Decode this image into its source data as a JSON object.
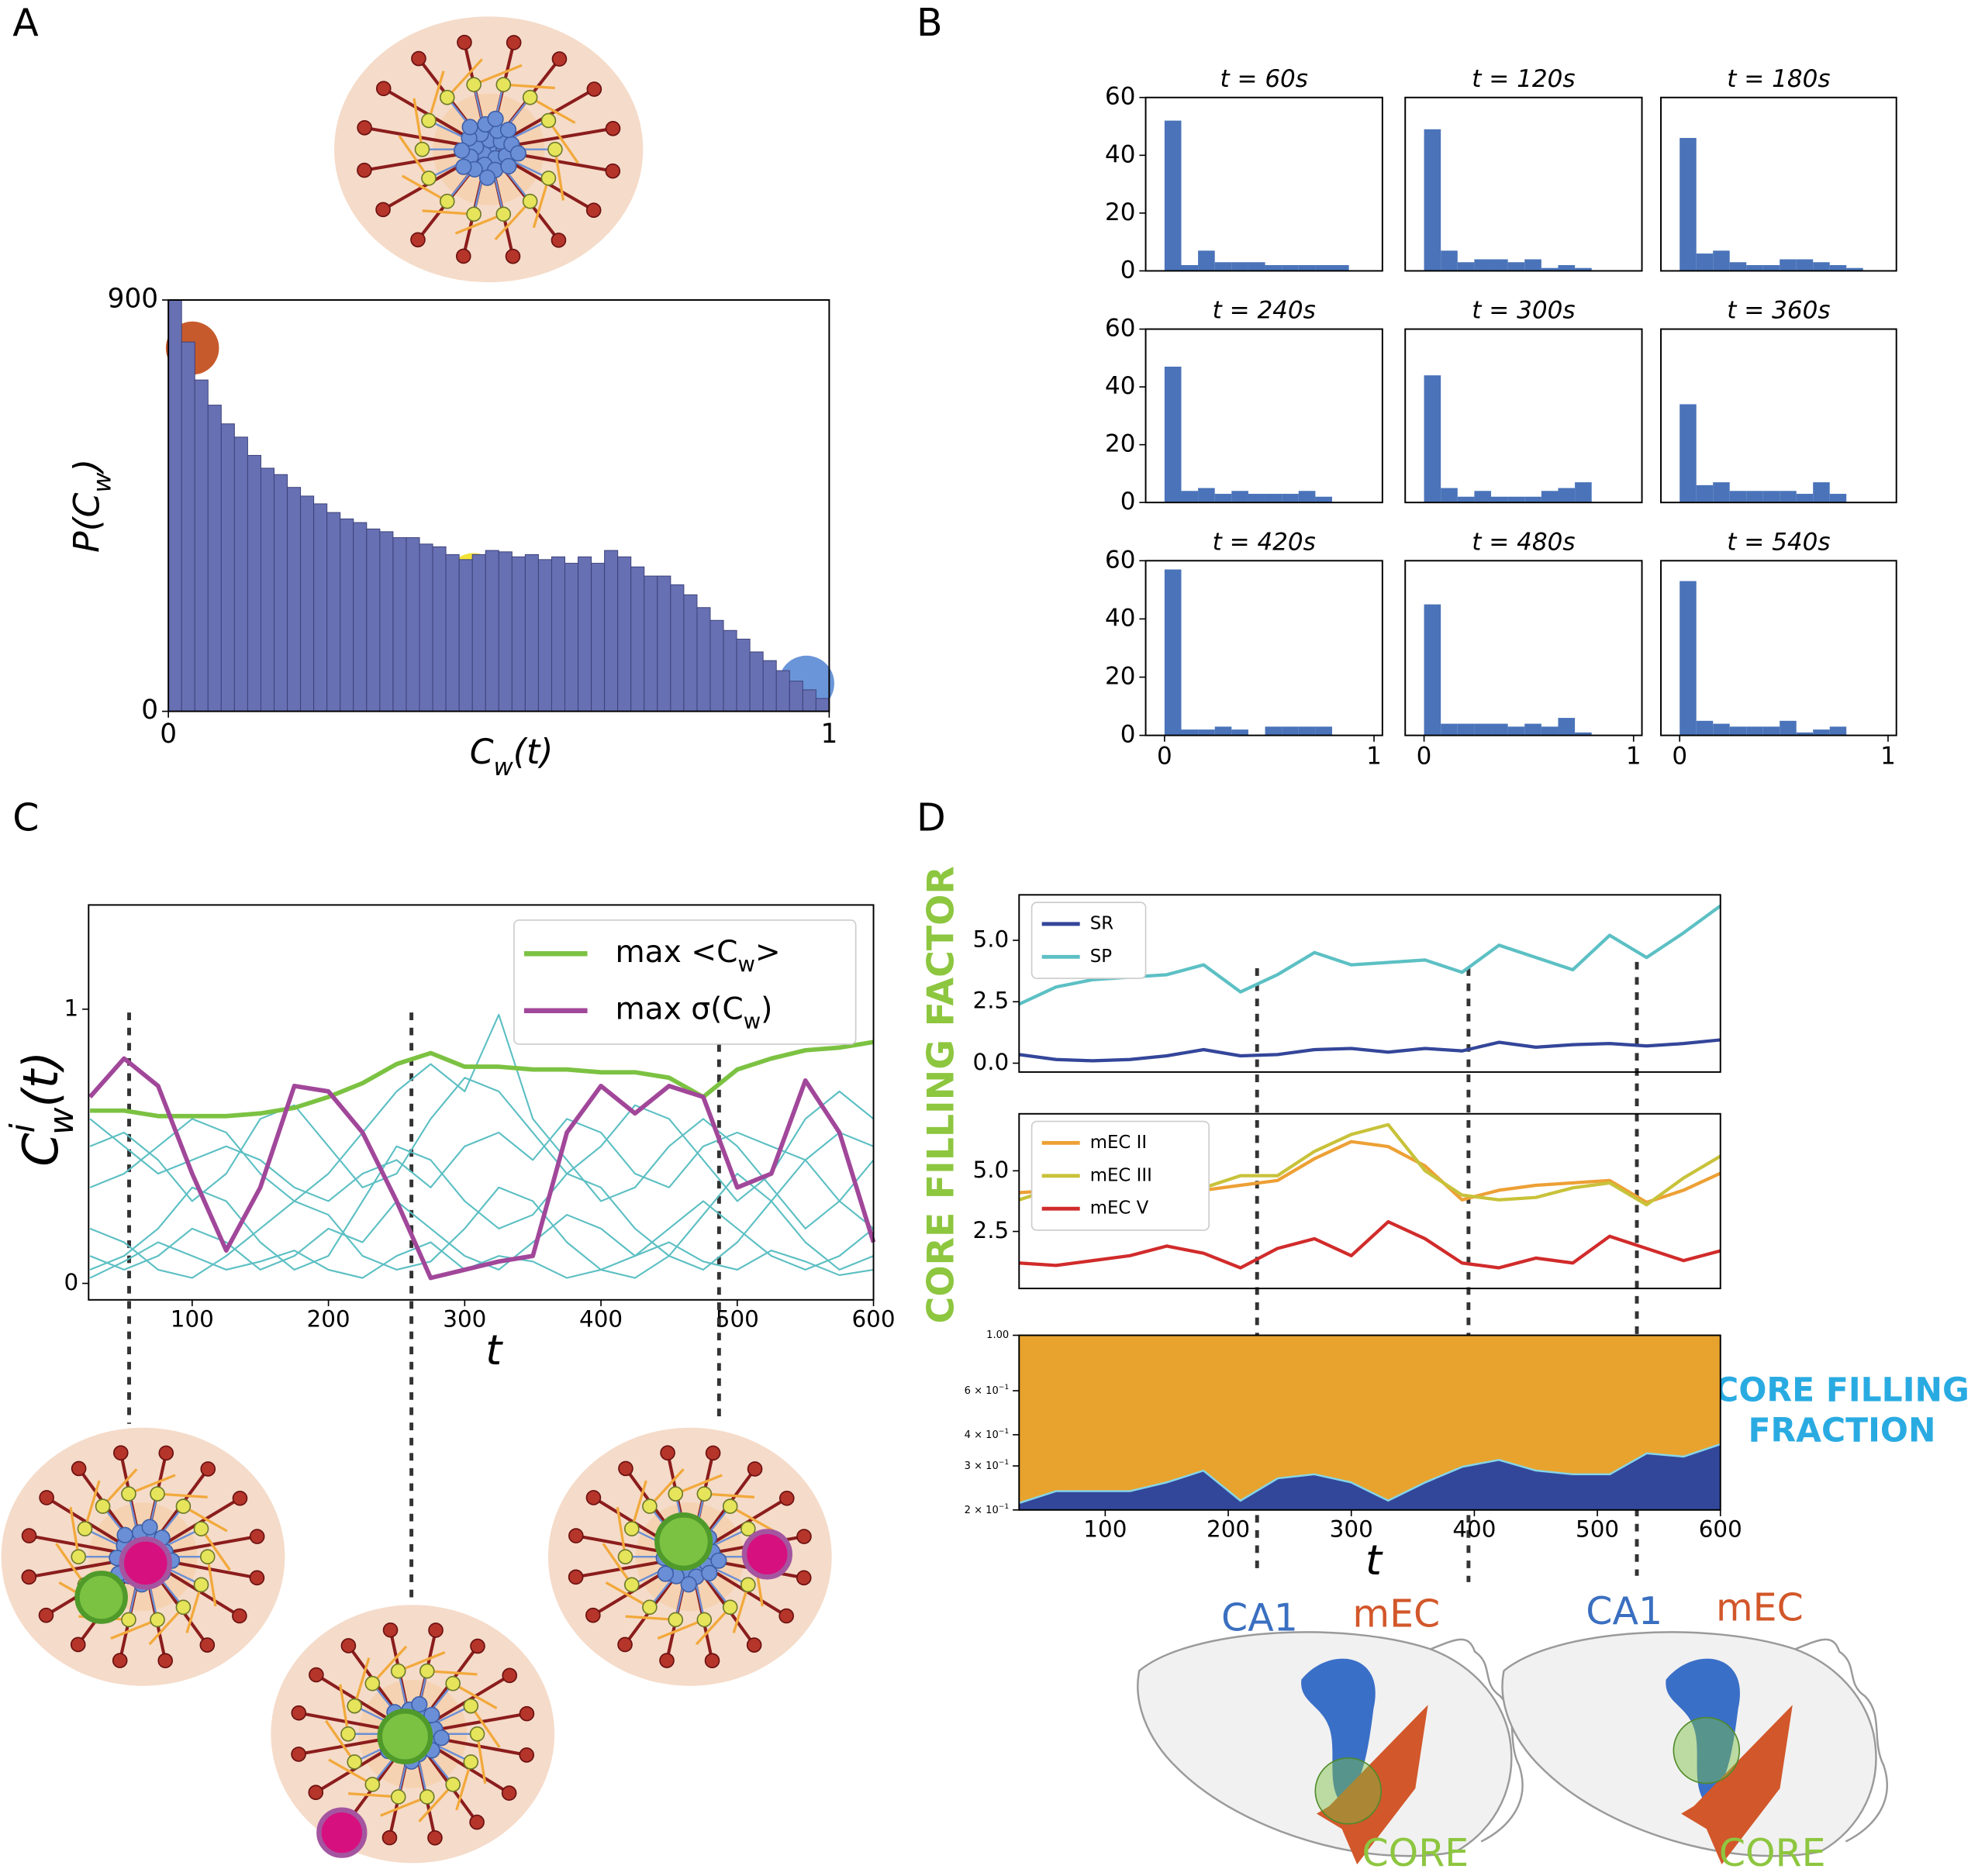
{
  "panel_labels": [
    "A",
    "B",
    "C",
    "D"
  ],
  "annotations": {
    "core_filling_factor": "CORE FILLING FACTOR",
    "core_filling_fraction": [
      "CORE FILLING",
      "FRACTION"
    ]
  },
  "brain_diagrams": [
    {
      "labels": [
        "CA1",
        "mEC",
        "CORE"
      ]
    },
    {
      "labels": [
        "CA1",
        "mEC",
        "CORE"
      ]
    }
  ],
  "chart_data": [
    {
      "type": "histogram",
      "xlabel": "Cw(t)",
      "ylabel": "P(Cw)",
      "color": "#6870b4",
      "bins": [
        0,
        0.02,
        0.04,
        0.06,
        0.08,
        0.1,
        0.12,
        0.14,
        0.16,
        0.18,
        0.2,
        0.22,
        0.24,
        0.26,
        0.28,
        0.3,
        0.32,
        0.34,
        0.36,
        0.38,
        0.4,
        0.42,
        0.44,
        0.46,
        0.48,
        0.5,
        0.52,
        0.54,
        0.56,
        0.58,
        0.6,
        0.62,
        0.64,
        0.66,
        0.68,
        0.7,
        0.72,
        0.74,
        0.76,
        0.78,
        0.8,
        0.82,
        0.84,
        0.86,
        0.88,
        0.9,
        0.92,
        0.94,
        0.96,
        0.98,
        1.0
      ],
      "counts": [
        900,
        808,
        725,
        670,
        629,
        600,
        560,
        532,
        518,
        490,
        471,
        454,
        435,
        421,
        413,
        399,
        393,
        380,
        380,
        366,
        360,
        343,
        332,
        343,
        352,
        349,
        338,
        343,
        332,
        338,
        324,
        338,
        324,
        352,
        338,
        316,
        296,
        296,
        277,
        255,
        227,
        199,
        177,
        158,
        130,
        111,
        89,
        66,
        47,
        28
      ],
      "xlim": [
        0,
        1
      ],
      "ylim": [
        0,
        900
      ],
      "xticks": [
        0,
        1
      ],
      "yticks": [
        0,
        900
      ]
    },
    {
      "type": "histogram",
      "title": "t = 60s",
      "color": "#4a73b9",
      "bins": [
        0,
        0.08,
        0.16,
        0.24,
        0.32,
        0.4,
        0.48,
        0.56,
        0.64,
        0.72,
        0.8,
        0.88,
        0.96
      ],
      "counts": [
        52,
        2,
        7,
        3,
        3,
        3,
        2,
        2,
        2,
        2,
        2,
        0
      ],
      "xlim": [
        -0.09,
        1.04
      ],
      "ylim": [
        0,
        60
      ],
      "yticks": [
        0,
        20,
        40,
        60
      ]
    },
    {
      "type": "histogram",
      "title": "t = 120s",
      "color": "#4a73b9",
      "bins": [
        0,
        0.08,
        0.16,
        0.24,
        0.32,
        0.4,
        0.48,
        0.56,
        0.64,
        0.72,
        0.8,
        0.88,
        0.96
      ],
      "counts": [
        49,
        7,
        3,
        4,
        4,
        3,
        4,
        1,
        2,
        1,
        0,
        0
      ],
      "xlim": [
        -0.09,
        1.04
      ],
      "ylim": [
        0,
        60
      ]
    },
    {
      "type": "histogram",
      "title": "t = 180s",
      "color": "#4a73b9",
      "bins": [
        0,
        0.08,
        0.16,
        0.24,
        0.32,
        0.4,
        0.48,
        0.56,
        0.64,
        0.72,
        0.8,
        0.88,
        0.96
      ],
      "counts": [
        46,
        6,
        7,
        3,
        2,
        2,
        4,
        4,
        3,
        2,
        1,
        0
      ],
      "xlim": [
        -0.09,
        1.04
      ],
      "ylim": [
        0,
        60
      ]
    },
    {
      "type": "histogram",
      "title": "t = 240s",
      "color": "#4a73b9",
      "bins": [
        0,
        0.08,
        0.16,
        0.24,
        0.32,
        0.4,
        0.48,
        0.56,
        0.64,
        0.72,
        0.8,
        0.88,
        0.96
      ],
      "counts": [
        47,
        4,
        5,
        3,
        4,
        3,
        3,
        3,
        4,
        2,
        0,
        0
      ],
      "xlim": [
        -0.09,
        1.04
      ],
      "ylim": [
        0,
        60
      ],
      "yticks": [
        0,
        20,
        40,
        60
      ]
    },
    {
      "type": "histogram",
      "title": "t = 300s",
      "color": "#4a73b9",
      "bins": [
        0,
        0.08,
        0.16,
        0.24,
        0.32,
        0.4,
        0.48,
        0.56,
        0.64,
        0.72,
        0.8,
        0.88,
        0.96
      ],
      "counts": [
        44,
        5,
        2,
        4,
        2,
        2,
        2,
        4,
        5,
        7,
        0,
        0
      ],
      "xlim": [
        -0.09,
        1.04
      ],
      "ylim": [
        0,
        60
      ]
    },
    {
      "type": "histogram",
      "title": "t = 360s",
      "color": "#4a73b9",
      "bins": [
        0,
        0.08,
        0.16,
        0.24,
        0.32,
        0.4,
        0.48,
        0.56,
        0.64,
        0.72,
        0.8,
        0.88,
        0.96
      ],
      "counts": [
        34,
        6,
        7,
        4,
        4,
        4,
        4,
        3,
        7,
        3,
        0,
        0
      ],
      "xlim": [
        -0.09,
        1.04
      ],
      "ylim": [
        0,
        60
      ]
    },
    {
      "type": "histogram",
      "title": "t = 420s",
      "color": "#4a73b9",
      "bins": [
        0,
        0.08,
        0.16,
        0.24,
        0.32,
        0.4,
        0.48,
        0.56,
        0.64,
        0.72,
        0.8,
        0.88,
        0.96
      ],
      "counts": [
        57,
        2,
        2,
        3,
        2,
        0,
        3,
        3,
        3,
        3,
        0,
        0
      ],
      "xlim": [
        -0.09,
        1.04
      ],
      "ylim": [
        0,
        60
      ],
      "xticks": [
        0,
        1
      ],
      "yticks": [
        0,
        20,
        40,
        60
      ]
    },
    {
      "type": "histogram",
      "title": "t = 480s",
      "color": "#4a73b9",
      "bins": [
        0,
        0.08,
        0.16,
        0.24,
        0.32,
        0.4,
        0.48,
        0.56,
        0.64,
        0.72,
        0.8,
        0.88,
        0.96
      ],
      "counts": [
        45,
        4,
        4,
        4,
        4,
        3,
        4,
        3,
        6,
        1,
        0,
        0
      ],
      "xlim": [
        -0.09,
        1.04
      ],
      "ylim": [
        0,
        60
      ],
      "xticks": [
        0,
        1
      ]
    },
    {
      "type": "histogram",
      "title": "t = 540s",
      "color": "#4a73b9",
      "bins": [
        0,
        0.08,
        0.16,
        0.24,
        0.32,
        0.4,
        0.48,
        0.56,
        0.64,
        0.72,
        0.8,
        0.88,
        0.96
      ],
      "counts": [
        53,
        5,
        4,
        3,
        3,
        3,
        5,
        1,
        2,
        3,
        0,
        0
      ],
      "xlim": [
        -0.09,
        1.04
      ],
      "ylim": [
        0,
        60
      ],
      "xticks": [
        0,
        1
      ]
    },
    {
      "type": "line",
      "xlabel": "t",
      "ylabel": "Ciw(t)",
      "legend": "upper right",
      "x": [
        25,
        50,
        75,
        100,
        125,
        150,
        175,
        200,
        225,
        250,
        275,
        300,
        325,
        350,
        375,
        400,
        425,
        450,
        475,
        500,
        525,
        550,
        575,
        600
      ],
      "xlim": [
        24,
        600
      ],
      "ylim": [
        -0.06,
        1.38
      ],
      "xticks": [
        100,
        200,
        300,
        400,
        500,
        600
      ],
      "yticks": [
        0,
        1
      ],
      "series": [
        {
          "color": "#5cbfc3",
          "values": [
            0.05,
            0.1,
            0.2,
            0.35,
            0.3,
            0.15,
            0.05,
            0.1,
            0.3,
            0.5,
            0.45,
            0.3,
            0.2,
            0.25,
            0.4,
            0.35,
            0.2,
            0.1,
            0.05,
            0.15,
            0.3,
            0.45,
            0.3,
            0.2
          ]
        },
        {
          "color": "#5cbfc3",
          "values": [
            0.5,
            0.55,
            0.45,
            0.3,
            0.4,
            0.6,
            0.65,
            0.5,
            0.35,
            0.4,
            0.6,
            0.75,
            0.7,
            0.55,
            0.4,
            0.5,
            0.65,
            0.6,
            0.45,
            0.3,
            0.4,
            0.6,
            0.7,
            0.6
          ]
        },
        {
          "color": "#5cbfc3",
          "values": [
            0.2,
            0.15,
            0.05,
            0.02,
            0.1,
            0.2,
            0.3,
            0.25,
            0.1,
            0.05,
            0.08,
            0.2,
            0.35,
            0.3,
            0.15,
            0.05,
            0.02,
            0.1,
            0.25,
            0.4,
            0.3,
            0.15,
            0.05,
            0.1
          ]
        },
        {
          "color": "#5cbfc3",
          "values": [
            0.35,
            0.4,
            0.5,
            0.6,
            0.55,
            0.4,
            0.3,
            0.4,
            0.55,
            0.7,
            0.8,
            0.7,
            0.98,
            0.6,
            0.45,
            0.3,
            0.35,
            0.5,
            0.6,
            0.5,
            0.35,
            0.2,
            0.3,
            0.45
          ]
        },
        {
          "color": "#5cbfc3",
          "values": [
            0.1,
            0.05,
            0.1,
            0.2,
            0.15,
            0.05,
            0.1,
            0.2,
            0.15,
            0.3,
            0.2,
            0.1,
            0.05,
            0.15,
            0.25,
            0.2,
            0.1,
            0.2,
            0.3,
            0.2,
            0.1,
            0.05,
            0.1,
            0.2
          ]
        },
        {
          "color": "#5cbfc3",
          "values": [
            0.6,
            0.5,
            0.4,
            0.45,
            0.5,
            0.45,
            0.35,
            0.3,
            0.4,
            0.45,
            0.35,
            0.5,
            0.55,
            0.45,
            0.6,
            0.55,
            0.4,
            0.35,
            0.5,
            0.55,
            0.5,
            0.45,
            0.55,
            0.5
          ]
        },
        {
          "color": "#5cbfc3",
          "values": [
            0.02,
            0.08,
            0.15,
            0.1,
            0.05,
            0.08,
            0.12,
            0.05,
            0.02,
            0.1,
            0.15,
            0.05,
            0.1,
            0.08,
            0.02,
            0.05,
            0.1,
            0.15,
            0.08,
            0.05,
            0.12,
            0.08,
            0.03,
            0.05
          ]
        },
        {
          "name": "max <Cw>",
          "color": "#7cc242",
          "values": [
            0.63,
            0.63,
            0.61,
            0.61,
            0.61,
            0.62,
            0.64,
            0.68,
            0.73,
            0.8,
            0.84,
            0.79,
            0.79,
            0.78,
            0.78,
            0.77,
            0.77,
            0.75,
            0.68,
            0.78,
            0.82,
            0.85,
            0.86,
            0.88
          ]
        },
        {
          "name": "max σ(Cw)",
          "color": "#a1479a",
          "values": [
            0.68,
            0.82,
            0.72,
            0.4,
            0.12,
            0.35,
            0.72,
            0.7,
            0.55,
            0.3,
            0.02,
            0.05,
            0.08,
            0.1,
            0.55,
            0.72,
            0.62,
            0.72,
            0.68,
            0.35,
            0.4,
            0.74,
            0.55,
            0.15
          ]
        }
      ]
    },
    {
      "type": "line",
      "legend": "upper left",
      "x": [
        30,
        60,
        90,
        120,
        150,
        180,
        210,
        240,
        270,
        300,
        330,
        360,
        390,
        420,
        450,
        480,
        510,
        540,
        570,
        600
      ],
      "xlim": [
        30,
        600
      ],
      "ylim": [
        -0.36,
        6.85
      ],
      "yticks": [
        {
          "value": 0,
          "label": "0.0"
        },
        {
          "value": 2.5,
          "label": "2.5"
        },
        {
          "value": 5,
          "label": "5.0"
        }
      ],
      "series": [
        {
          "name": "SR",
          "color": "#34469a",
          "values": [
            0.35,
            0.15,
            0.1,
            0.15,
            0.3,
            0.55,
            0.3,
            0.35,
            0.55,
            0.6,
            0.45,
            0.6,
            0.5,
            0.85,
            0.65,
            0.75,
            0.8,
            0.7,
            0.8,
            0.95
          ]
        },
        {
          "name": "SP",
          "color": "#5cc0c4",
          "values": [
            2.4,
            3.1,
            3.4,
            3.5,
            3.6,
            4.0,
            2.9,
            3.6,
            4.5,
            4.0,
            4.1,
            4.2,
            3.7,
            4.8,
            4.3,
            3.8,
            5.2,
            4.3,
            5.3,
            6.4
          ]
        }
      ]
    },
    {
      "type": "line",
      "legend": "upper left",
      "x": [
        30,
        60,
        90,
        120,
        150,
        180,
        210,
        240,
        270,
        300,
        330,
        360,
        390,
        420,
        450,
        480,
        510,
        540,
        570,
        600
      ],
      "xlim": [
        30,
        600
      ],
      "ylim": [
        0.15,
        7.35
      ],
      "yticks": [
        {
          "value": 2.5,
          "label": "2.5"
        },
        {
          "value": 5,
          "label": "5.0"
        }
      ],
      "series": [
        {
          "name": "mEC II",
          "color": "#eda035",
          "values": [
            4.1,
            4.2,
            4.1,
            4.3,
            4.2,
            4.2,
            4.4,
            4.6,
            5.5,
            6.2,
            6.0,
            5.2,
            3.8,
            4.2,
            4.4,
            4.5,
            4.6,
            3.7,
            4.2,
            4.9
          ]
        },
        {
          "name": "mEC III",
          "color": "#c8c23a",
          "values": [
            3.8,
            4.3,
            4.5,
            4.1,
            4.1,
            4.3,
            4.8,
            4.8,
            5.8,
            6.5,
            6.9,
            5.0,
            4.0,
            3.8,
            3.9,
            4.3,
            4.5,
            3.6,
            4.7,
            5.6
          ]
        },
        {
          "name": "mEC V",
          "color": "#d12b2b",
          "values": [
            1.2,
            1.1,
            1.3,
            1.5,
            1.9,
            1.6,
            1.0,
            1.8,
            2.2,
            1.5,
            2.9,
            2.2,
            1.2,
            1.0,
            1.4,
            1.2,
            2.3,
            1.8,
            1.3,
            1.7
          ]
        }
      ]
    },
    {
      "type": "area",
      "xlabel": "t",
      "log_y": true,
      "edge_color": "#86d6ea",
      "x": [
        30,
        60,
        90,
        120,
        150,
        180,
        210,
        240,
        270,
        300,
        330,
        360,
        390,
        420,
        450,
        480,
        510,
        540,
        570,
        600
      ],
      "xlim": [
        30,
        600
      ],
      "ylim": [
        0.2,
        1.0
      ],
      "xticks": [
        100,
        200,
        300,
        400,
        500,
        600
      ],
      "yticks": [
        {
          "value": 0.2,
          "label": "2 × 10−1"
        },
        {
          "value": 0.3,
          "label": "3 × 10−1"
        },
        {
          "value": 0.4,
          "label": "4 × 10−1"
        },
        {
          "value": 0.6,
          "label": "6 × 10−1"
        },
        {
          "value": 1.0,
          "label": "1.00"
        }
      ],
      "series": [
        {
          "color": "#33479a",
          "values": [
            0.215,
            0.24,
            0.24,
            0.24,
            0.26,
            0.29,
            0.22,
            0.27,
            0.28,
            0.26,
            0.22,
            0.26,
            0.3,
            0.32,
            0.29,
            0.28,
            0.28,
            0.34,
            0.33,
            0.37
          ]
        },
        {
          "color": "#e8a32e",
          "values": [
            0.785,
            0.76,
            0.76,
            0.76,
            0.74,
            0.71,
            0.78,
            0.73,
            0.72,
            0.74,
            0.78,
            0.74,
            0.7,
            0.68,
            0.71,
            0.72,
            0.72,
            0.66,
            0.67,
            0.63
          ]
        }
      ]
    }
  ]
}
